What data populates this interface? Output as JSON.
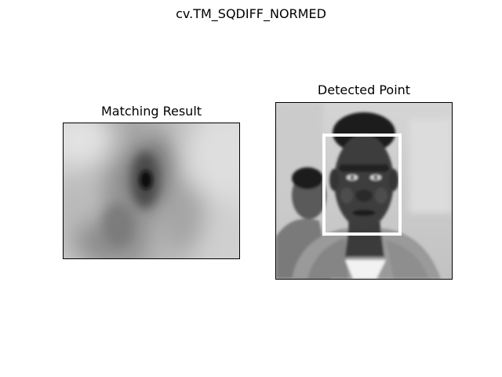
{
  "figure": {
    "suptitle": "cv.TM_SQDIFF_NORMED"
  },
  "panels": [
    {
      "title": "Matching Result",
      "image": "grayscale-match-heatmap"
    },
    {
      "title": "Detected Point",
      "image": "grayscale-face-photo",
      "overlay": "white-detection-rectangle"
    }
  ],
  "colors": {
    "background": "#ffffff",
    "axes_border": "#000000",
    "detection_box": "#ffffff"
  }
}
